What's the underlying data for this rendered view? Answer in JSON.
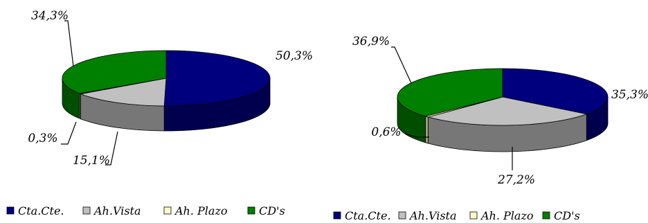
{
  "colors": {
    "cta_cte": "#00007F",
    "ah_vista": "#C0C0C0",
    "ah_plazo": "#FFFFCC",
    "cds": "#008000"
  },
  "chart_data": [
    {
      "type": "pie",
      "style": "3d-exploded-depth",
      "categories": [
        "Cta.Cte.",
        "Ah.Vista",
        "Ah. Plazo",
        "CD's"
      ],
      "values": [
        50.3,
        15.1,
        0.3,
        34.3
      ],
      "labels": [
        "50,3%",
        "15,1%",
        "0,3%",
        "34,3%"
      ],
      "legend": [
        "Cta.Cte.",
        "Ah.Vista",
        "Ah. Plazo",
        "CD's"
      ],
      "legend_position": "bottom"
    },
    {
      "type": "pie",
      "style": "3d-exploded-depth",
      "categories": [
        "Cta.Cte.",
        "Ah.Vista",
        "Ah. Plazo",
        "CD's"
      ],
      "values": [
        35.3,
        27.2,
        0.6,
        36.9
      ],
      "labels": [
        "35,3%",
        "27,2%",
        "0,6%",
        "36,9%"
      ],
      "legend": [
        "Cta.Cte.",
        "Ah.Vista",
        "Ah. Plazo",
        "CD's"
      ],
      "legend_position": "bottom"
    }
  ]
}
